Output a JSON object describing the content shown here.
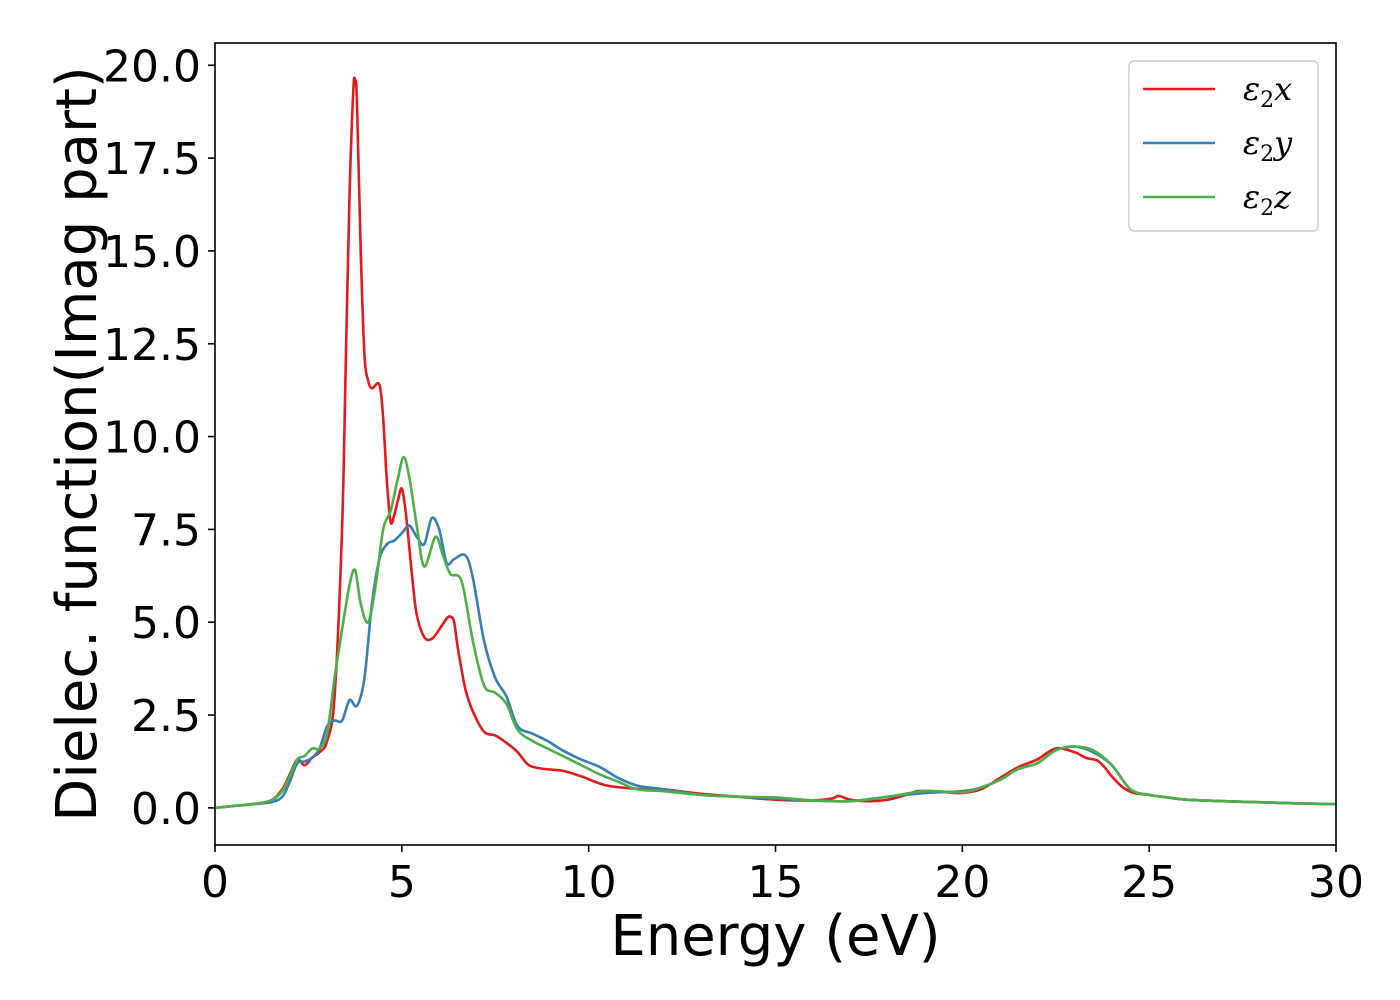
{
  "chart_data": {
    "type": "line",
    "xlabel": "Energy (eV)",
    "ylabel": "Dielec. function(Imag part)",
    "xlim": [
      0,
      30
    ],
    "ylim": [
      -1.0,
      20.6
    ],
    "grid": false,
    "legend_position": "top-right",
    "xticks": [
      0,
      5,
      10,
      15,
      20,
      25,
      30
    ],
    "xtick_labels": [
      "0",
      "5",
      "10",
      "15",
      "20",
      "25",
      "30"
    ],
    "yticks": [
      0,
      2.5,
      5,
      7.5,
      10,
      12.5,
      15,
      17.5,
      20
    ],
    "ytick_labels": [
      "0.0",
      "2.5",
      "5.0",
      "7.5",
      "10.0",
      "12.5",
      "15.0",
      "17.5",
      "20.0"
    ],
    "series": [
      {
        "name_base": "ε",
        "name_sub": "2",
        "name_suffix": "x",
        "color": "#e41a1c",
        "x": [
          0,
          0.5,
          1.0,
          1.5,
          1.8,
          2.0,
          2.2,
          2.4,
          2.6,
          2.8,
          3.0,
          3.2,
          3.4,
          3.5,
          3.6,
          3.7,
          3.75,
          3.8,
          3.9,
          4.0,
          4.1,
          4.2,
          4.4,
          4.5,
          4.6,
          4.7,
          4.8,
          4.9,
          5.0,
          5.1,
          5.2,
          5.3,
          5.4,
          5.6,
          5.8,
          6.0,
          6.2,
          6.3,
          6.4,
          6.5,
          6.7,
          6.9,
          7.2,
          7.5,
          7.8,
          8.1,
          8.4,
          8.8,
          9.3,
          9.8,
          10.5,
          11.5,
          12.0,
          13.0,
          14.0,
          15.0,
          16.0,
          16.5,
          16.7,
          17.0,
          17.5,
          18.0,
          18.5,
          18.8,
          19.2,
          19.6,
          20.0,
          20.5,
          21.0,
          21.5,
          22.0,
          22.5,
          23.0,
          23.3,
          23.6,
          23.8,
          24.0,
          24.3,
          24.6,
          25.0,
          25.5,
          26.0,
          27.0,
          28.0,
          29.0,
          30.0
        ],
        "y": [
          0.0,
          0.05,
          0.1,
          0.2,
          0.5,
          0.9,
          1.3,
          1.15,
          1.35,
          1.5,
          1.8,
          3.0,
          7.5,
          12.0,
          16.5,
          19.3,
          19.6,
          19.0,
          15.0,
          12.2,
          11.5,
          11.3,
          11.4,
          10.5,
          8.8,
          7.7,
          7.9,
          8.3,
          8.6,
          8.0,
          7.0,
          6.0,
          5.2,
          4.6,
          4.55,
          4.8,
          5.1,
          5.15,
          5.0,
          4.3,
          3.2,
          2.6,
          2.05,
          1.95,
          1.75,
          1.5,
          1.15,
          1.05,
          1.0,
          0.85,
          0.6,
          0.5,
          0.5,
          0.38,
          0.3,
          0.22,
          0.2,
          0.25,
          0.32,
          0.22,
          0.18,
          0.22,
          0.35,
          0.45,
          0.45,
          0.42,
          0.4,
          0.5,
          0.8,
          1.1,
          1.3,
          1.6,
          1.5,
          1.35,
          1.28,
          1.1,
          0.85,
          0.55,
          0.4,
          0.35,
          0.28,
          0.22,
          0.18,
          0.15,
          0.12,
          0.1
        ]
      },
      {
        "name_base": "ε",
        "name_sub": "2",
        "name_suffix": "y",
        "color": "#377eb8",
        "x": [
          0,
          0.5,
          1.0,
          1.5,
          1.8,
          2.0,
          2.2,
          2.4,
          2.6,
          2.8,
          3.0,
          3.2,
          3.4,
          3.6,
          3.8,
          4.0,
          4.2,
          4.4,
          4.6,
          4.8,
          5.0,
          5.2,
          5.4,
          5.6,
          5.8,
          6.0,
          6.2,
          6.4,
          6.7,
          6.9,
          7.2,
          7.5,
          7.8,
          8.1,
          8.5,
          8.9,
          9.3,
          9.8,
          10.3,
          10.8,
          11.3,
          12.0,
          13.0,
          14.0,
          15.0,
          16.0,
          17.0,
          18.0,
          19.0,
          20.0,
          20.5,
          21.0,
          21.5,
          22.0,
          22.5,
          23.0,
          23.5,
          24.0,
          24.5,
          25.0,
          25.5,
          26.0,
          27.0,
          28.0,
          29.0,
          30.0
        ],
        "y": [
          0.0,
          0.05,
          0.1,
          0.15,
          0.3,
          0.7,
          1.2,
          1.25,
          1.35,
          1.6,
          2.2,
          2.35,
          2.35,
          2.9,
          2.75,
          3.5,
          5.5,
          6.7,
          7.1,
          7.2,
          7.4,
          7.6,
          7.3,
          7.1,
          7.8,
          7.5,
          6.6,
          6.7,
          6.8,
          6.2,
          4.5,
          3.5,
          3.0,
          2.2,
          2.0,
          1.8,
          1.55,
          1.3,
          1.1,
          0.8,
          0.6,
          0.5,
          0.35,
          0.3,
          0.25,
          0.2,
          0.18,
          0.3,
          0.4,
          0.45,
          0.55,
          0.75,
          1.05,
          1.2,
          1.55,
          1.65,
          1.5,
          1.15,
          0.5,
          0.35,
          0.28,
          0.22,
          0.18,
          0.15,
          0.12,
          0.1
        ]
      },
      {
        "name_base": "ε",
        "name_sub": "2",
        "name_suffix": "z",
        "color": "#4daf4a",
        "x": [
          0,
          0.5,
          1.0,
          1.5,
          1.8,
          2.0,
          2.2,
          2.4,
          2.6,
          2.8,
          3.0,
          3.2,
          3.4,
          3.6,
          3.75,
          3.9,
          4.1,
          4.3,
          4.5,
          4.7,
          4.9,
          5.05,
          5.2,
          5.4,
          5.6,
          5.9,
          6.1,
          6.3,
          6.6,
          6.9,
          7.2,
          7.5,
          7.8,
          8.1,
          8.5,
          8.9,
          9.3,
          9.8,
          10.3,
          10.8,
          11.3,
          12.0,
          13.0,
          14.0,
          15.0,
          16.0,
          17.0,
          18.0,
          19.0,
          20.0,
          20.5,
          21.0,
          21.5,
          22.0,
          22.5,
          23.0,
          23.5,
          24.0,
          24.5,
          25.0,
          25.5,
          26.0,
          27.0,
          28.0,
          29.0,
          30.0
        ],
        "y": [
          0.0,
          0.05,
          0.1,
          0.2,
          0.45,
          0.85,
          1.3,
          1.4,
          1.6,
          1.6,
          2.0,
          3.5,
          4.8,
          6.0,
          6.4,
          5.5,
          5.0,
          6.0,
          7.5,
          8.0,
          8.9,
          9.45,
          8.9,
          7.6,
          6.5,
          7.3,
          6.8,
          6.3,
          6.1,
          4.5,
          3.3,
          3.1,
          2.8,
          2.1,
          1.8,
          1.6,
          1.4,
          1.15,
          0.9,
          0.7,
          0.5,
          0.45,
          0.35,
          0.3,
          0.28,
          0.2,
          0.18,
          0.3,
          0.45,
          0.42,
          0.55,
          0.75,
          1.05,
          1.2,
          1.55,
          1.65,
          1.55,
          1.15,
          0.5,
          0.35,
          0.28,
          0.22,
          0.18,
          0.15,
          0.12,
          0.1
        ]
      }
    ]
  }
}
